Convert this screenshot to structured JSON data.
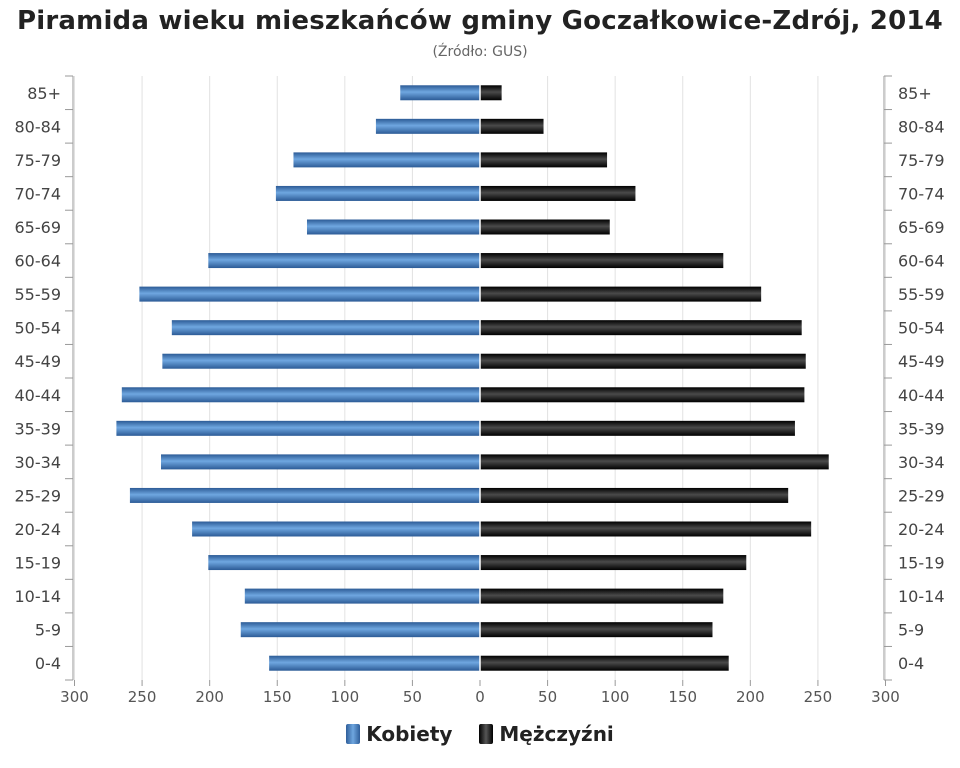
{
  "chart_data": {
    "type": "bar",
    "title": "Piramida wieku mieszkańców gminy Goczałkowice-Zdrój, 2014",
    "subtitle": "(Źródło: GUS)",
    "categories": [
      "85+",
      "80-84",
      "75-79",
      "70-74",
      "65-69",
      "60-64",
      "55-59",
      "50-54",
      "45-49",
      "40-44",
      "35-39",
      "30-34",
      "25-29",
      "20-24",
      "15-19",
      "10-14",
      "5-9",
      "0-4"
    ],
    "series": [
      {
        "name": "Kobiety",
        "color": "#3a76b8",
        "values": [
          59,
          77,
          138,
          151,
          128,
          201,
          252,
          228,
          235,
          265,
          269,
          236,
          259,
          213,
          201,
          174,
          177,
          156
        ]
      },
      {
        "name": "Mężczyźni",
        "color": "#111111",
        "values": [
          16,
          47,
          94,
          115,
          96,
          180,
          208,
          238,
          241,
          240,
          233,
          258,
          228,
          245,
          197,
          180,
          172,
          184
        ]
      }
    ],
    "xlim": [
      -300,
      300
    ],
    "xticks": [
      "300",
      "250",
      "200",
      "150",
      "100",
      "50",
      "0",
      "50",
      "100",
      "150",
      "200",
      "250",
      "300"
    ],
    "grid": true,
    "legend_position": "bottom"
  }
}
